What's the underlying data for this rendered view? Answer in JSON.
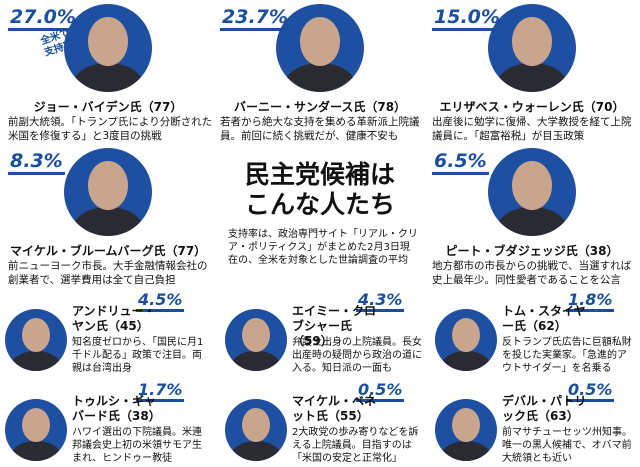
{
  "title": [
    "民主党候補は",
    "こんな人たち"
  ],
  "note": "支持率は、政治専門サイト「リアル・クリア・ポリティクス」がまとめた2月3日現在の、全米を対象とした世論調査の平均",
  "support_caption": "全米での支持率",
  "candidates": [
    {
      "support": "27.0%",
      "name": "ジョー・バイデン氏（77）",
      "desc": "前副大統領。「トランプ氏により分断された米国を修復する」と3度目の挑戦"
    },
    {
      "support": "23.7%",
      "name": "バーニー・サンダース氏（78）",
      "desc": "若者から絶大な支持を集める革新派上院議員。前回に続く挑戦だが、健康不安も"
    },
    {
      "support": "15.0%",
      "name": "エリザベス・ウォーレン氏（70）",
      "desc": "出産後に勉学に復帰、大学教授を経て上院議員に。「超富裕税」が目玉政策"
    },
    {
      "support": "8.3%",
      "name": "マイケル・ブルームバーグ氏（77）",
      "desc": "前ニューヨーク市長。大手金融情報会社の創業者で、選挙費用は全て自己負担"
    },
    {
      "support": "6.5%",
      "name": "ピート・ブダジェッジ氏（38）",
      "desc": "地方都市の市長からの挑戦で、当選すれば史上最年少。同性愛者であることを公言"
    },
    {
      "support": "4.5%",
      "name": "アンドリュー・ヤン氏（45）",
      "desc": "知名度ゼロから、「国民に月1千ドル配る」政策で注目。両親は台湾出身"
    },
    {
      "support": "4.3%",
      "name": "エイミー・クロブシャー氏（59）",
      "desc": "弁護士出身の上院議員。長女出産時の疑問から政治の道に入る。知日派の一面も"
    },
    {
      "support": "1.8%",
      "name": "トム・スタイヤー氏（62）",
      "desc": "反トランプ氏広告に巨額私財を投じた実業家。「急進的アウトサイダー」を名乗る"
    },
    {
      "support": "1.7%",
      "name": "トゥルシ・ギャバード氏（38）",
      "desc": "ハワイ選出の下院議員。米連邦議会史上初の米領サモア生まれ、ヒンドゥー教徒"
    },
    {
      "support": "0.5%",
      "name": "マイケル・ベネット氏（55）",
      "desc": "2大政党の歩み寄りなどを訴える上院議員。目指すのは「米国の安定と正常化」"
    },
    {
      "support": "0.5%",
      "name": "デバル・パトリック氏（63）",
      "desc": "前マサチューセッツ州知事。唯一の黒人候補で、オバマ前大統領とも近い"
    }
  ]
}
